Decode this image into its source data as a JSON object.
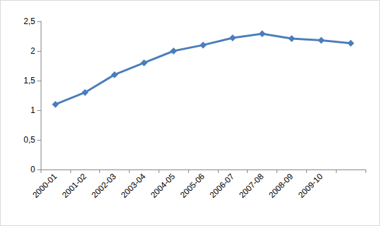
{
  "chart_data": {
    "type": "line",
    "categories": [
      "2000-01",
      "2001-02",
      "2002-03",
      "2003-04",
      "2004-05",
      "2005-06",
      "2006-07",
      "2007-08",
      "2008-09",
      "2009-10",
      null
    ],
    "values": [
      1.1,
      1.3,
      1.6,
      1.8,
      2.0,
      2.1,
      2.22,
      2.29,
      2.21,
      2.18,
      2.13
    ],
    "color": "#4a7ebb",
    "marker": "diamond",
    "ylim": [
      0,
      2.5
    ],
    "yticks": [
      {
        "value": 0,
        "label": "0"
      },
      {
        "value": 0.5,
        "label": "0,5"
      },
      {
        "value": 1,
        "label": "1"
      },
      {
        "value": 1.5,
        "label": "1,5"
      },
      {
        "value": 2,
        "label": "2"
      },
      {
        "value": 2.5,
        "label": "2,5"
      }
    ],
    "grid": false
  }
}
